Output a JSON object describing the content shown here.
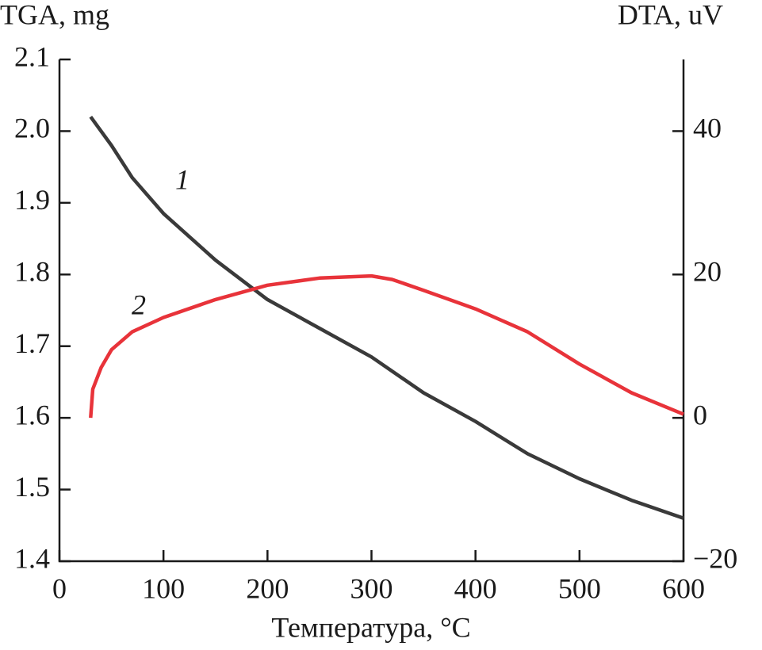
{
  "chart_data": {
    "type": "line",
    "y_label": "TGA, mg",
    "y2_label": "DTA, uV",
    "x_label": "Температура, °C",
    "annotations": [
      "1",
      "2"
    ],
    "xlim": [
      0,
      600
    ],
    "xticks": [
      0,
      100,
      200,
      300,
      400,
      500,
      600
    ],
    "ylim": [
      1.4,
      2.1
    ],
    "yticks": [
      1.4,
      1.5,
      1.6,
      1.7,
      1.8,
      1.9,
      {
        "value": 2,
        "label": "2.0"
      },
      2.1
    ],
    "y2lim": [
      -20,
      50
    ],
    "y2ticks": [
      {
        "value": -20,
        "label": "−20"
      },
      0,
      20,
      40
    ],
    "series": [
      {
        "name": "1",
        "color": "#3a3a3a",
        "x": [
          30,
          50,
          70,
          100,
          150,
          200,
          250,
          300,
          350,
          400,
          450,
          500,
          550,
          600
        ],
        "values": [
          2.02,
          1.98,
          1.935,
          1.885,
          1.82,
          1.765,
          1.725,
          1.685,
          1.635,
          1.595,
          1.55,
          1.515,
          1.485,
          1.46
        ]
      },
      {
        "name": "2",
        "color": "#e8333a",
        "axis": "y2",
        "x": [
          30,
          32,
          40,
          50,
          70,
          100,
          150,
          200,
          250,
          300,
          320,
          350,
          400,
          450,
          500,
          550,
          600
        ],
        "values": [
          0,
          4,
          7,
          9.5,
          12,
          14,
          16.5,
          18.5,
          19.5,
          19.8,
          19.3,
          17.8,
          15.2,
          12,
          7.5,
          3.5,
          0.5
        ]
      }
    ]
  }
}
